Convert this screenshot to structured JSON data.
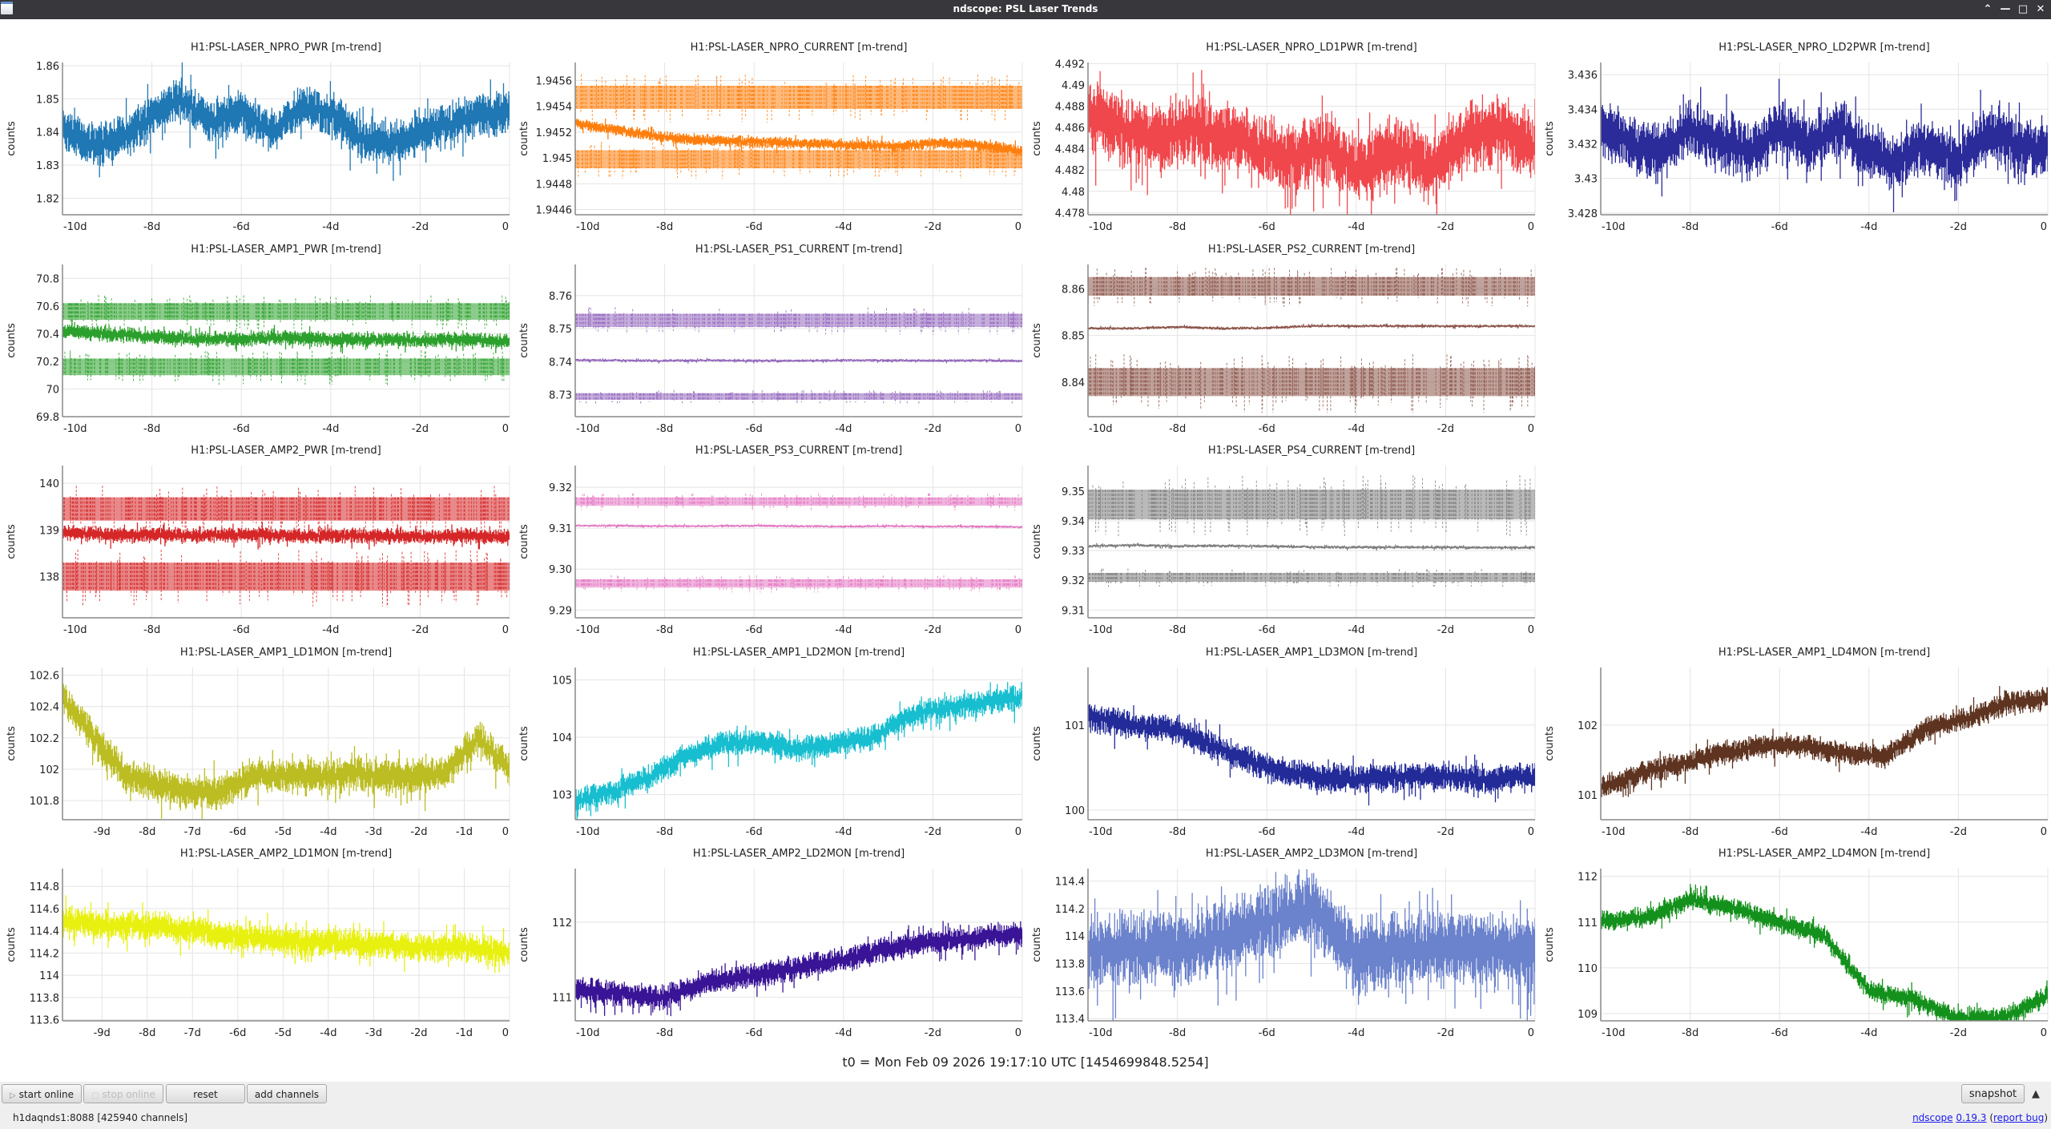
{
  "window": {
    "title": "ndscope: PSL Laser Trends"
  },
  "t0_label": "t0 = Mon Feb 09 2026 19:17:10 UTC [1454699848.5254]",
  "toolbar": {
    "start_online": "start online",
    "stop_online": "stop online",
    "reset": "reset",
    "add_channels": "add channels",
    "snapshot": "snapshot"
  },
  "status": {
    "server": "h1daqnds1:8088  [425940 channels]",
    "app_link": "ndscope",
    "version_link": "0.19.3",
    "open_paren": " (",
    "report_link": "report bug",
    "close_paren": ")"
  },
  "chart_data": [
    {
      "row": 0,
      "col": 0,
      "type": "line",
      "title": "H1:PSL-LASER_NPRO_PWR [m-trend]",
      "ylabel": "counts",
      "color": "#1f77b4",
      "xlim": [
        -10,
        0
      ],
      "xticks": [
        -10,
        -8,
        -6,
        -4,
        -2,
        0
      ],
      "xticklabels": [
        "-10d",
        "-8d",
        "-6d",
        "-4d",
        "-2d",
        "0"
      ],
      "ylim": [
        1.815,
        1.861
      ],
      "yticks": [
        1.82,
        1.83,
        1.84,
        1.85,
        1.86
      ],
      "yticklabels": [
        "1.82",
        "1.83",
        "1.84",
        "1.85",
        "1.86"
      ],
      "profile": [
        1.841,
        1.836,
        1.838,
        1.845,
        1.85,
        1.843,
        1.846,
        1.84,
        1.847,
        1.846,
        1.838,
        1.836,
        1.84,
        1.842,
        1.845,
        1.846
      ],
      "spread": 0.006,
      "bands": []
    },
    {
      "row": 0,
      "col": 1,
      "type": "line",
      "title": "H1:PSL-LASER_NPRO_CURRENT [m-trend]",
      "ylabel": "counts",
      "color": "#ff7f0e",
      "xlim": [
        -10,
        0
      ],
      "xticks": [
        -10,
        -8,
        -6,
        -4,
        -2,
        0
      ],
      "xticklabels": [
        "-10d",
        "-8d",
        "-6d",
        "-4d",
        "-2d",
        "0"
      ],
      "ylim": [
        1.94456,
        1.94574
      ],
      "yticks": [
        1.9446,
        1.9448,
        1.945,
        1.9452,
        1.9454,
        1.9456
      ],
      "yticklabels": [
        "1.9446",
        "1.9448",
        "1.945",
        "1.9452",
        "1.9454",
        "1.9456"
      ],
      "profile": [
        1.94527,
        1.94522,
        1.94517,
        1.94514,
        1.94513,
        1.94512,
        1.94511,
        1.9451,
        1.94509,
        1.94512,
        1.9451,
        1.94505
      ],
      "spread": 4e-05,
      "bands": [
        [
          1.94538,
          1.94556
        ],
        [
          1.94492,
          1.94506
        ]
      ]
    },
    {
      "row": 0,
      "col": 2,
      "type": "line",
      "title": "H1:PSL-LASER_NPRO_LD1PWR [m-trend]",
      "ylabel": "counts",
      "color": "#f0474c",
      "xlim": [
        -10,
        0
      ],
      "xticks": [
        -10,
        -8,
        -6,
        -4,
        -2,
        0
      ],
      "xticklabels": [
        "-10d",
        "-8d",
        "-6d",
        "-4d",
        "-2d",
        "0"
      ],
      "ylim": [
        4.4778,
        4.4921
      ],
      "yticks": [
        4.478,
        4.48,
        4.482,
        4.484,
        4.486,
        4.488,
        4.49,
        4.492
      ],
      "yticklabels": [
        "4.478",
        "4.48",
        "4.482",
        "4.484",
        "4.486",
        "4.488",
        "4.49",
        "4.492"
      ],
      "profile": [
        4.487,
        4.486,
        4.485,
        4.486,
        4.485,
        4.484,
        4.483,
        4.484,
        4.482,
        4.484,
        4.482,
        4.485,
        4.486,
        4.484
      ],
      "spread": 0.003,
      "bands": []
    },
    {
      "row": 0,
      "col": 3,
      "type": "line",
      "title": "H1:PSL-LASER_NPRO_LD2PWR [m-trend]",
      "ylabel": "counts",
      "color": "#2b2b9a",
      "xlim": [
        -10,
        0
      ],
      "xticks": [
        -10,
        -8,
        -6,
        -4,
        -2,
        0
      ],
      "xticklabels": [
        "-10d",
        "-8d",
        "-6d",
        "-4d",
        "-2d",
        "0"
      ],
      "ylim": [
        3.4279,
        3.4367
      ],
      "yticks": [
        3.428,
        3.43,
        3.432,
        3.434,
        3.436
      ],
      "yticklabels": [
        "3.428",
        "3.43",
        "3.432",
        "3.434",
        "3.436"
      ],
      "profile": [
        3.433,
        3.432,
        3.4315,
        3.433,
        3.432,
        3.4315,
        3.433,
        3.432,
        3.433,
        3.4315,
        3.431,
        3.432,
        3.431,
        3.4325,
        3.432,
        3.4315
      ],
      "spread": 0.0015,
      "bands": []
    },
    {
      "row": 1,
      "col": 0,
      "type": "line",
      "title": "H1:PSL-LASER_AMP1_PWR [m-trend]",
      "ylabel": "counts",
      "color": "#2ca02c",
      "xlim": [
        -10,
        0
      ],
      "xticks": [
        -10,
        -8,
        -6,
        -4,
        -2,
        0
      ],
      "xticklabels": [
        "-10d",
        "-8d",
        "-6d",
        "-4d",
        "-2d",
        "0"
      ],
      "ylim": [
        69.8,
        70.9
      ],
      "yticks": [
        69.8,
        70,
        70.2,
        70.4,
        70.6,
        70.8
      ],
      "yticklabels": [
        "69.8",
        "70",
        "70.2",
        "70.4",
        "70.6",
        "70.8"
      ],
      "profile": [
        70.42,
        70.4,
        70.38,
        70.36,
        70.36,
        70.37,
        70.36,
        70.36,
        70.35,
        70.36,
        70.34
      ],
      "spread": 0.05,
      "bands": [
        [
          70.5,
          70.62
        ],
        [
          70.1,
          70.22
        ]
      ]
    },
    {
      "row": 1,
      "col": 1,
      "type": "line",
      "title": "H1:PSL-LASER_PS1_CURRENT [m-trend]",
      "ylabel": "counts",
      "color": "#9467bd",
      "xlim": [
        -10,
        0
      ],
      "xticks": [
        -10,
        -8,
        -6,
        -4,
        -2,
        0
      ],
      "xticklabels": [
        "-10d",
        "-8d",
        "-6d",
        "-4d",
        "-2d",
        "0"
      ],
      "ylim": [
        8.7234,
        8.7694
      ],
      "yticks": [
        8.73,
        8.74,
        8.75,
        8.76
      ],
      "yticklabels": [
        "8.73",
        "8.74",
        "8.75",
        "8.76"
      ],
      "profile": [
        8.7405,
        8.7404,
        8.7403,
        8.7404,
        8.7403,
        8.7403,
        8.7404,
        8.7404,
        8.7403,
        8.7404,
        8.7402
      ],
      "spread": 0.0004,
      "bands": [
        [
          8.7505,
          8.7545
        ],
        [
          8.7285,
          8.7305
        ]
      ]
    },
    {
      "row": 1,
      "col": 2,
      "type": "line",
      "title": "H1:PSL-LASER_PS2_CURRENT [m-trend]",
      "ylabel": "counts",
      "color": "#8c564b",
      "xlim": [
        -10,
        0
      ],
      "xticks": [
        -10,
        -8,
        -6,
        -4,
        -2,
        0
      ],
      "xticklabels": [
        "-10d",
        "-8d",
        "-6d",
        "-4d",
        "-2d",
        "0"
      ],
      "ylim": [
        8.8326,
        8.8652
      ],
      "yticks": [
        8.84,
        8.85,
        8.86
      ],
      "yticklabels": [
        "8.84",
        "8.85",
        "8.86"
      ],
      "profile": [
        8.8515,
        8.8515,
        8.8518,
        8.8515,
        8.8516,
        8.852,
        8.852,
        8.852,
        8.852,
        8.852,
        8.852
      ],
      "spread": 0.0003,
      "bands": [
        [
          8.8585,
          8.8625
        ],
        [
          8.837,
          8.843
        ]
      ]
    },
    {
      "row": 2,
      "col": 0,
      "type": "line",
      "title": "H1:PSL-LASER_AMP2_PWR [m-trend]",
      "ylabel": "counts",
      "color": "#d62728",
      "xlim": [
        -10,
        0
      ],
      "xticks": [
        -10,
        -8,
        -6,
        -4,
        -2,
        0
      ],
      "xticklabels": [
        "-10d",
        "-8d",
        "-6d",
        "-4d",
        "-2d",
        "0"
      ],
      "ylim": [
        137.12,
        140.38
      ],
      "yticks": [
        138,
        139,
        140
      ],
      "yticklabels": [
        "138",
        "139",
        "140"
      ],
      "profile": [
        138.95,
        138.9,
        138.9,
        138.88,
        138.9,
        138.88,
        138.87,
        138.88,
        138.86,
        138.87,
        138.85
      ],
      "spread": 0.15,
      "bands": [
        [
          139.2,
          139.7
        ],
        [
          137.7,
          138.3
        ]
      ]
    },
    {
      "row": 2,
      "col": 1,
      "type": "line",
      "title": "H1:PSL-LASER_PS3_CURRENT [m-trend]",
      "ylabel": "counts",
      "color": "#e377c2",
      "xlim": [
        -10,
        0
      ],
      "xticks": [
        -10,
        -8,
        -6,
        -4,
        -2,
        0
      ],
      "xticklabels": [
        "-10d",
        "-8d",
        "-6d",
        "-4d",
        "-2d",
        "0"
      ],
      "ylim": [
        9.2881,
        9.3253
      ],
      "yticks": [
        9.29,
        9.3,
        9.31,
        9.32
      ],
      "yticklabels": [
        "9.29",
        "9.30",
        "9.31",
        "9.32"
      ],
      "profile": [
        9.3106,
        9.3106,
        9.3105,
        9.3105,
        9.3106,
        9.3105,
        9.3104,
        9.3105,
        9.3104,
        9.3104,
        9.3103
      ],
      "spread": 0.0003,
      "bands": [
        [
          9.3155,
          9.3175
        ],
        [
          9.2955,
          9.2975
        ]
      ]
    },
    {
      "row": 2,
      "col": 2,
      "type": "line",
      "title": "H1:PSL-LASER_PS4_CURRENT [m-trend]",
      "ylabel": "counts",
      "color": "#7f7f7f",
      "xlim": [
        -10,
        0
      ],
      "xticks": [
        -10,
        -8,
        -6,
        -4,
        -2,
        0
      ],
      "xticklabels": [
        "-10d",
        "-8d",
        "-6d",
        "-4d",
        "-2d",
        "0"
      ],
      "ylim": [
        9.3074,
        9.3586
      ],
      "yticks": [
        9.31,
        9.32,
        9.33,
        9.34,
        9.35
      ],
      "yticklabels": [
        "9.31",
        "9.32",
        "9.33",
        "9.34",
        "9.35"
      ],
      "profile": [
        9.3315,
        9.3318,
        9.3315,
        9.3316,
        9.3315,
        9.3312,
        9.3311,
        9.3311,
        9.3311,
        9.331,
        9.331
      ],
      "spread": 0.0005,
      "bands": [
        [
          9.3405,
          9.3505
        ],
        [
          9.3195,
          9.3225
        ]
      ]
    },
    {
      "row": 3,
      "col": 0,
      "type": "line",
      "title": "H1:PSL-LASER_AMP1_LD1MON [m-trend]",
      "ylabel": "counts",
      "color": "#bcbd22",
      "xlim": [
        -9.87,
        0
      ],
      "xticks": [
        -9,
        -8,
        -7,
        -6,
        -5,
        -4,
        -3,
        -2,
        -1,
        0
      ],
      "xticklabels": [
        "-9d",
        "-8d",
        "-7d",
        "-6d",
        "-5d",
        "-4d",
        "-3d",
        "-2d",
        "-1d",
        "0"
      ],
      "ylim": [
        101.678,
        102.649
      ],
      "yticks": [
        101.8,
        102,
        102.2,
        102.4,
        102.6
      ],
      "yticklabels": [
        "101.8",
        "102",
        "102.2",
        "102.4",
        "102.6"
      ],
      "profile": [
        102.45,
        102.2,
        101.95,
        101.9,
        101.85,
        101.85,
        101.97,
        101.95,
        101.95,
        101.97,
        101.96,
        101.95,
        101.98,
        102.2,
        102.0
      ],
      "spread": 0.1,
      "bands": []
    },
    {
      "row": 3,
      "col": 1,
      "type": "line",
      "title": "H1:PSL-LASER_AMP1_LD2MON [m-trend]",
      "ylabel": "counts",
      "color": "#17becf",
      "xlim": [
        -10,
        0
      ],
      "xticks": [
        -10,
        -8,
        -6,
        -4,
        -2,
        0
      ],
      "xticklabels": [
        "-10d",
        "-8d",
        "-6d",
        "-4d",
        "-2d",
        "0"
      ],
      "ylim": [
        102.561,
        105.216
      ],
      "yticks": [
        103,
        104,
        105
      ],
      "yticklabels": [
        "103",
        "104",
        "105"
      ],
      "profile": [
        102.85,
        103.05,
        103.3,
        103.7,
        103.9,
        103.9,
        103.8,
        103.9,
        104.0,
        104.4,
        104.5,
        104.6,
        104.7
      ],
      "spread": 0.2,
      "bands": []
    },
    {
      "row": 3,
      "col": 2,
      "type": "line",
      "title": "H1:PSL-LASER_AMP1_LD3MON [m-trend]",
      "ylabel": "counts",
      "color": "#232b99",
      "xlim": [
        -10,
        0
      ],
      "xticks": [
        -10,
        -8,
        -6,
        -4,
        -2,
        0
      ],
      "xticklabels": [
        "-10d",
        "-8d",
        "-6d",
        "-4d",
        "-2d",
        "0"
      ],
      "ylim": [
        99.885,
        101.678
      ],
      "yticks": [
        100,
        101
      ],
      "yticklabels": [
        "100",
        "101"
      ],
      "profile": [
        101.1,
        101.0,
        100.95,
        100.7,
        100.5,
        100.4,
        100.35,
        100.4,
        100.4,
        100.35,
        100.4
      ],
      "spread": 0.15,
      "bands": []
    },
    {
      "row": 3,
      "col": 3,
      "type": "line",
      "title": "H1:PSL-LASER_AMP1_LD4MON [m-trend]",
      "ylabel": "counts",
      "color": "#5e3421",
      "xlim": [
        -10,
        0
      ],
      "xticks": [
        -10,
        -8,
        -6,
        -4,
        -2,
        0
      ],
      "xticklabels": [
        "-10d",
        "-8d",
        "-6d",
        "-4d",
        "-2d",
        "0"
      ],
      "ylim": [
        100.642,
        102.826
      ],
      "yticks": [
        101,
        102
      ],
      "yticklabels": [
        "101",
        "102"
      ],
      "profile": [
        101.1,
        101.3,
        101.45,
        101.6,
        101.7,
        101.7,
        101.6,
        101.55,
        101.95,
        102.1,
        102.3,
        102.4
      ],
      "spread": 0.15,
      "bands": []
    },
    {
      "row": 4,
      "col": 0,
      "type": "line",
      "title": "H1:PSL-LASER_AMP2_LD1MON [m-trend]",
      "ylabel": "counts",
      "color": "#e8f010",
      "xlim": [
        -9.87,
        0
      ],
      "xticks": [
        -9,
        -8,
        -7,
        -6,
        -5,
        -4,
        -3,
        -2,
        -1,
        0
      ],
      "xticklabels": [
        "-9d",
        "-8d",
        "-7d",
        "-6d",
        "-5d",
        "-4d",
        "-3d",
        "-2d",
        "-1d",
        "0"
      ],
      "ylim": [
        113.59,
        114.96
      ],
      "yticks": [
        113.6,
        113.8,
        114,
        114.2,
        114.4,
        114.6,
        114.8
      ],
      "yticklabels": [
        "113.6",
        "113.8",
        "114",
        "114.2",
        "114.4",
        "114.6",
        "114.8"
      ],
      "profile": [
        114.5,
        114.45,
        114.45,
        114.4,
        114.35,
        114.3,
        114.3,
        114.28,
        114.25,
        114.25,
        114.2
      ],
      "spread": 0.12,
      "bands": []
    },
    {
      "row": 4,
      "col": 1,
      "type": "line",
      "title": "H1:PSL-LASER_AMP2_LD2MON [m-trend]",
      "ylabel": "counts",
      "color": "#3a1496",
      "xlim": [
        -10,
        0
      ],
      "xticks": [
        -10,
        -8,
        -6,
        -4,
        -2,
        0
      ],
      "xticklabels": [
        "-10d",
        "-8d",
        "-6d",
        "-4d",
        "-2d",
        "0"
      ],
      "ylim": [
        110.686,
        112.714
      ],
      "yticks": [
        111,
        112
      ],
      "yticklabels": [
        "111",
        "112"
      ],
      "profile": [
        111.1,
        111.05,
        111.0,
        111.2,
        111.3,
        111.4,
        111.5,
        111.65,
        111.75,
        111.8,
        111.85
      ],
      "spread": 0.15,
      "bands": []
    },
    {
      "row": 4,
      "col": 2,
      "type": "line",
      "title": "H1:PSL-LASER_AMP2_LD3MON [m-trend]",
      "ylabel": "counts",
      "color": "#6b82cc",
      "xlim": [
        -10,
        0
      ],
      "xticks": [
        -10,
        -8,
        -6,
        -4,
        -2,
        0
      ],
      "xticklabels": [
        "-10d",
        "-8d",
        "-6d",
        "-4d",
        "-2d",
        "0"
      ],
      "ylim": [
        113.383,
        114.491
      ],
      "yticks": [
        113.4,
        113.6,
        113.8,
        114,
        114.2,
        114.4
      ],
      "yticklabels": [
        "113.4",
        "113.6",
        "113.8",
        "114",
        "114.2",
        "114.4"
      ],
      "profile": [
        113.9,
        113.9,
        113.9,
        114.0,
        114.1,
        114.2,
        113.85,
        113.9,
        113.9,
        113.9,
        113.9
      ],
      "spread": 0.25,
      "bands": []
    },
    {
      "row": 4,
      "col": 3,
      "type": "line",
      "title": "H1:PSL-LASER_AMP2_LD4MON [m-trend]",
      "ylabel": "counts",
      "color": "#14911c",
      "xlim": [
        -10,
        0
      ],
      "xticks": [
        -10,
        -8,
        -6,
        -4,
        -2,
        0
      ],
      "xticklabels": [
        "-10d",
        "-8d",
        "-6d",
        "-4d",
        "-2d",
        "0"
      ],
      "ylim": [
        108.84,
        112.17
      ],
      "yticks": [
        109,
        110,
        111,
        112
      ],
      "yticklabels": [
        "109",
        "110",
        "111",
        "112"
      ],
      "profile": [
        111.0,
        111.1,
        111.5,
        111.3,
        111.0,
        110.7,
        109.5,
        109.3,
        108.9,
        108.9,
        109.4
      ],
      "spread": 0.2,
      "bands": []
    }
  ]
}
